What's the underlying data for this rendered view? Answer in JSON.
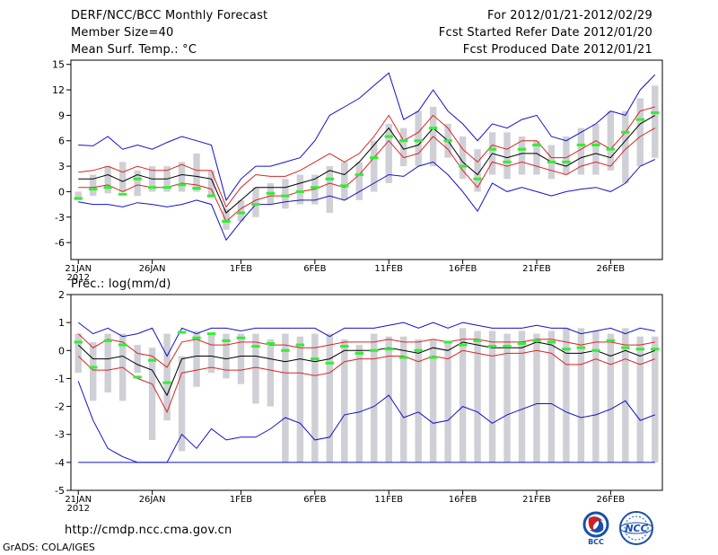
{
  "header": {
    "title": "DERF/NCC/BCC Monthly Forecast",
    "member_size": "Member Size=40",
    "variable": "Mean Surf. Temp.: °C",
    "period": "For 2012/01/21-2012/02/29",
    "started": "Fcst Started Refer Date 2012/01/20",
    "produced": "Fcst Produced Date 2012/01/21"
  },
  "precip_label": "Prec.: log(mm/d)",
  "footer": {
    "url": "http://cmdp.ncc.cma.gov.cn",
    "credit": "GrADS: COLA/IGES",
    "logo_bcc": "BCC",
    "logo_ncc": "NCC"
  },
  "colors": {
    "box": "#cfcfd6",
    "median": "#33ee33",
    "mean": "#000000",
    "sd": "#dd2222",
    "extreme": "#1111cc"
  },
  "x_ticks": [
    {
      "day": 1,
      "label": "21JAN",
      "sub": "2012"
    },
    {
      "day": 6,
      "label": "26JAN",
      "sub": ""
    },
    {
      "day": 12,
      "label": "1FEB",
      "sub": ""
    },
    {
      "day": 17,
      "label": "6FEB",
      "sub": ""
    },
    {
      "day": 22,
      "label": "11FEB",
      "sub": ""
    },
    {
      "day": 27,
      "label": "16FEB",
      "sub": ""
    },
    {
      "day": 32,
      "label": "21FEB",
      "sub": ""
    },
    {
      "day": 37,
      "label": "26FEB",
      "sub": ""
    }
  ],
  "chart_data": [
    {
      "type": "box",
      "title": "Mean Surf. Temp.: °C",
      "xlabel": "",
      "ylabel": "",
      "x_range": [
        0.5,
        40.5
      ],
      "ylim": [
        -8,
        15.5
      ],
      "yticks": [
        -6,
        -3,
        0,
        3,
        6,
        9,
        12,
        15
      ],
      "ytick_labels": [
        "-6",
        "-3",
        "0",
        "3",
        "6",
        "9",
        "12",
        "15"
      ],
      "box_low": [
        -1.0,
        -0.5,
        -0.2,
        0.0,
        -0.5,
        0.0,
        0.0,
        0.0,
        0.0,
        -0.5,
        -4.5,
        -3.5,
        -3.0,
        -1.5,
        -2.0,
        -1.5,
        -1.5,
        -2.5,
        -1.0,
        -1.0,
        0.0,
        1.0,
        3.0,
        3.0,
        3.0,
        4.0,
        1.5,
        0.0,
        2.0,
        1.5,
        2.0,
        2.0,
        1.5,
        2.0,
        2.0,
        2.0,
        2.5,
        1.0,
        3.0,
        4.0
      ],
      "box_high": [
        0.0,
        2.0,
        3.0,
        3.5,
        2.5,
        3.0,
        3.0,
        3.5,
        4.5,
        2.5,
        -2.0,
        -1.0,
        0.5,
        1.0,
        1.5,
        2.0,
        2.0,
        3.0,
        3.5,
        3.5,
        6.0,
        8.0,
        7.5,
        9.5,
        10.0,
        8.0,
        6.5,
        5.0,
        7.0,
        7.0,
        6.5,
        6.0,
        5.5,
        6.5,
        7.5,
        8.0,
        9.5,
        9.5,
        11.0,
        12.5
      ],
      "median": [
        -0.8,
        0.3,
        0.5,
        -0.3,
        1.5,
        0.5,
        0.5,
        0.8,
        0.4,
        -0.5,
        -3.5,
        -2.5,
        -1.5,
        -0.2,
        -0.5,
        0.0,
        0.5,
        1.5,
        0.7,
        2.0,
        4.0,
        6.5,
        6.0,
        6.0,
        7.5,
        6.0,
        3.0,
        1.5,
        5.0,
        3.5,
        5.0,
        5.5,
        3.5,
        3.5,
        5.5,
        5.5,
        5.0,
        7.0,
        8.5,
        9.3
      ],
      "series": [
        {
          "name": "max",
          "role": "extreme",
          "values": [
            5.5,
            5.4,
            6.5,
            5.0,
            5.5,
            5.0,
            5.8,
            6.5,
            6.0,
            5.5,
            -1.0,
            1.5,
            3.0,
            3.0,
            3.5,
            4.0,
            6.0,
            9.0,
            10.0,
            11.0,
            12.5,
            14.0,
            8.5,
            9.5,
            12.0,
            9.5,
            8.0,
            6.0,
            8.0,
            7.5,
            8.5,
            9.0,
            6.5,
            6.0,
            7.0,
            8.0,
            9.5,
            9.0,
            12.0,
            13.8
          ]
        },
        {
          "name": "mean+sd",
          "role": "sd",
          "values": [
            2.3,
            2.5,
            3.0,
            2.3,
            3.0,
            2.5,
            2.5,
            3.2,
            2.5,
            2.5,
            -1.8,
            0.5,
            2.0,
            1.8,
            1.8,
            2.5,
            3.5,
            4.5,
            3.5,
            4.5,
            6.5,
            9.0,
            6.0,
            7.0,
            9.0,
            7.5,
            5.0,
            3.5,
            5.5,
            5.0,
            6.0,
            6.0,
            4.0,
            4.0,
            5.0,
            6.0,
            5.0,
            7.0,
            9.5,
            10.0
          ]
        },
        {
          "name": "mean",
          "role": "mean",
          "values": [
            1.5,
            1.5,
            2.0,
            1.2,
            2.0,
            1.5,
            1.5,
            2.0,
            1.8,
            1.5,
            -2.5,
            -1.0,
            0.5,
            0.5,
            0.5,
            1.0,
            1.5,
            2.5,
            2.0,
            3.5,
            5.5,
            7.5,
            5.0,
            5.5,
            7.5,
            6.0,
            3.5,
            2.0,
            4.5,
            4.0,
            4.5,
            4.5,
            3.5,
            3.0,
            4.0,
            4.5,
            4.0,
            6.0,
            8.0,
            9.0
          ]
        },
        {
          "name": "mean-sd",
          "role": "sd",
          "values": [
            0.5,
            0.5,
            0.8,
            0.0,
            0.8,
            0.5,
            0.5,
            1.0,
            0.8,
            0.3,
            -3.5,
            -2.0,
            -1.0,
            -0.5,
            -0.5,
            0.0,
            0.3,
            1.0,
            0.5,
            2.0,
            4.0,
            6.0,
            4.0,
            4.5,
            6.5,
            5.0,
            2.5,
            0.5,
            3.5,
            3.0,
            3.5,
            3.0,
            2.5,
            2.0,
            3.0,
            3.5,
            3.0,
            5.0,
            6.5,
            7.5
          ]
        },
        {
          "name": "min",
          "role": "extreme",
          "values": [
            -1.2,
            -1.5,
            -1.5,
            -1.8,
            -1.3,
            -1.5,
            -1.8,
            -1.5,
            -1.0,
            -1.5,
            -5.7,
            -3.5,
            -1.5,
            -1.5,
            -1.2,
            -1.0,
            -1.0,
            -0.5,
            -1.0,
            0.0,
            1.0,
            2.0,
            1.8,
            3.0,
            3.5,
            2.0,
            0.0,
            -2.3,
            1.0,
            0.0,
            0.5,
            0.0,
            -0.5,
            0.0,
            0.3,
            0.5,
            0.0,
            1.0,
            3.0,
            3.8
          ]
        }
      ]
    },
    {
      "type": "box",
      "title": "Prec.: log(mm/d)",
      "xlabel": "",
      "ylabel": "",
      "x_range": [
        0.5,
        40.5
      ],
      "ylim": [
        -5,
        2
      ],
      "yticks": [
        -5,
        -4,
        -3,
        -2,
        -1,
        0,
        1,
        2
      ],
      "ytick_labels": [
        "-5",
        "-4",
        "-3",
        "-2",
        "-1",
        "0",
        "1",
        "2"
      ],
      "box_low": [
        -0.8,
        -1.8,
        -1.5,
        -1.8,
        -0.8,
        -3.2,
        -2.5,
        -3.6,
        -1.3,
        -0.8,
        -1.0,
        -1.2,
        -1.9,
        -2.0,
        -4.0,
        -4.0,
        -4.0,
        -4.0,
        -4.0,
        -4.0,
        -4.0,
        -4.0,
        -4.0,
        -4.0,
        -4.0,
        -4.0,
        -4.0,
        -4.0,
        -4.0,
        -4.0,
        -4.0,
        -4.0,
        -4.0,
        -4.0,
        -4.0,
        -4.0,
        -4.0,
        -4.0,
        -4.0,
        -4.0
      ],
      "box_high": [
        0.6,
        0.3,
        0.6,
        0.6,
        0.2,
        0.1,
        0.6,
        -0.2,
        0.7,
        0.6,
        0.6,
        0.6,
        0.6,
        0.4,
        0.6,
        0.5,
        0.6,
        0.6,
        0.4,
        0.2,
        0.6,
        0.5,
        0.5,
        0.4,
        0.4,
        0.3,
        0.8,
        0.7,
        0.7,
        0.6,
        0.7,
        0.6,
        0.7,
        0.8,
        0.8,
        0.7,
        0.6,
        0.8,
        0.5,
        0.5
      ],
      "median": [
        0.3,
        -0.6,
        0.35,
        0.2,
        -0.95,
        -0.35,
        -1.15,
        0.65,
        0.45,
        0.6,
        0.35,
        0.45,
        0.15,
        0.25,
        0.0,
        0.2,
        -0.3,
        -0.45,
        0.15,
        -0.1,
        0.0,
        0.05,
        -0.25,
        0.0,
        -0.25,
        0.3,
        0.2,
        0.35,
        0.15,
        0.15,
        0.25,
        0.35,
        0.3,
        0.05,
        0.1,
        0.0,
        0.35,
        0.1,
        0.05,
        0.05
      ],
      "series": [
        {
          "name": "max",
          "role": "extreme",
          "values": [
            1.0,
            0.6,
            0.8,
            0.5,
            0.6,
            0.8,
            -0.2,
            0.8,
            0.6,
            0.8,
            0.8,
            0.7,
            0.8,
            0.8,
            0.8,
            0.8,
            0.8,
            0.5,
            0.8,
            0.8,
            0.8,
            0.9,
            1.0,
            0.8,
            1.0,
            0.8,
            1.0,
            0.9,
            0.8,
            0.8,
            0.8,
            0.9,
            0.8,
            0.8,
            0.6,
            0.7,
            0.8,
            0.6,
            0.8,
            0.7
          ]
        },
        {
          "name": "mean+sd",
          "role": "sd",
          "values": [
            0.6,
            0.1,
            0.4,
            0.3,
            -0.1,
            -0.2,
            -0.6,
            0.3,
            0.4,
            0.2,
            0.2,
            0.3,
            0.3,
            0.2,
            0.2,
            0.1,
            0.1,
            0.2,
            0.3,
            0.3,
            0.3,
            0.4,
            0.3,
            0.3,
            0.4,
            0.3,
            0.4,
            0.4,
            0.3,
            0.3,
            0.3,
            0.4,
            0.4,
            0.3,
            0.2,
            0.3,
            0.3,
            0.2,
            0.2,
            0.3
          ]
        },
        {
          "name": "mean",
          "role": "mean",
          "values": [
            0.2,
            -0.3,
            -0.3,
            -0.2,
            -0.5,
            -0.7,
            -1.6,
            -0.3,
            -0.2,
            -0.2,
            -0.3,
            -0.2,
            -0.2,
            -0.3,
            -0.4,
            -0.3,
            -0.4,
            -0.3,
            0.0,
            0.0,
            0.0,
            0.1,
            0.0,
            -0.1,
            0.1,
            0.0,
            0.3,
            0.2,
            0.1,
            0.1,
            0.1,
            0.3,
            0.2,
            -0.1,
            -0.1,
            0.0,
            -0.2,
            0.0,
            -0.2,
            0.0
          ]
        },
        {
          "name": "mean-sd",
          "role": "sd",
          "values": [
            -0.2,
            -0.7,
            -0.7,
            -0.6,
            -1.0,
            -1.2,
            -2.2,
            -0.8,
            -0.7,
            -0.6,
            -0.7,
            -0.7,
            -0.6,
            -0.7,
            -0.8,
            -0.8,
            -0.9,
            -0.8,
            -0.4,
            -0.3,
            -0.3,
            -0.2,
            -0.2,
            -0.4,
            -0.2,
            -0.3,
            0.0,
            -0.1,
            -0.2,
            -0.1,
            -0.1,
            0.0,
            -0.1,
            -0.5,
            -0.5,
            -0.3,
            -0.5,
            -0.3,
            -0.5,
            -0.3
          ]
        },
        {
          "name": "min",
          "role": "extreme",
          "values": [
            -1.1,
            -2.5,
            -3.5,
            -3.8,
            -4.0,
            -4.0,
            -4.0,
            -3.0,
            -3.5,
            -2.8,
            -3.2,
            -3.1,
            -3.1,
            -2.8,
            -2.4,
            -2.6,
            -3.2,
            -3.1,
            -2.3,
            -2.2,
            -2.0,
            -1.6,
            -2.4,
            -2.2,
            -2.6,
            -2.5,
            -2.0,
            -2.2,
            -2.6,
            -2.3,
            -2.1,
            -1.9,
            -1.9,
            -2.2,
            -2.4,
            -2.3,
            -2.1,
            -1.8,
            -2.5,
            -2.3
          ]
        }
      ]
    }
  ]
}
